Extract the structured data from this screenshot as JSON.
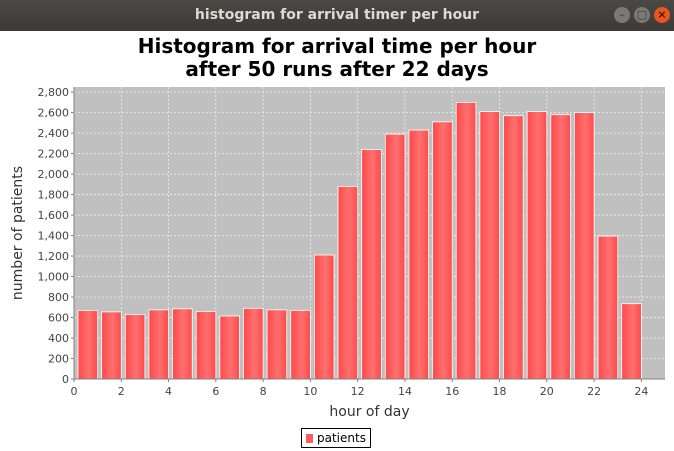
{
  "window": {
    "title": "histogram for arrival timer per hour",
    "buttons": {
      "minimize": "–",
      "maximize": "□",
      "close": "×"
    }
  },
  "chart_data": {
    "type": "bar",
    "title": [
      "Histogram for arrival time per hour",
      "after 50 runs after 22 days"
    ],
    "xlabel": "hour of day",
    "ylabel": "number of patients",
    "xlim": [
      0,
      25
    ],
    "ylim": [
      0,
      2850
    ],
    "xticks": [
      0,
      2,
      4,
      6,
      8,
      10,
      12,
      14,
      16,
      18,
      20,
      22,
      24
    ],
    "yticks": [
      0,
      200,
      400,
      600,
      800,
      1000,
      1200,
      1400,
      1600,
      1800,
      2000,
      2200,
      2400,
      2600,
      2800
    ],
    "ytick_labels": [
      "0",
      "200",
      "400",
      "600",
      "800",
      "1,000",
      "1,200",
      "1,400",
      "1,600",
      "1,800",
      "2,000",
      "2,200",
      "2,400",
      "2,600",
      "2,800"
    ],
    "grid": true,
    "legend_position": "bottom",
    "series": [
      {
        "name": "patients",
        "color": "#ff5c5c",
        "x": [
          0,
          1,
          2,
          3,
          4,
          5,
          6,
          7,
          8,
          9,
          10,
          11,
          12,
          13,
          14,
          15,
          16,
          17,
          18,
          19,
          20,
          21,
          22,
          23
        ],
        "values": [
          670,
          655,
          630,
          675,
          685,
          660,
          615,
          690,
          675,
          670,
          1210,
          1880,
          2240,
          2390,
          2430,
          2510,
          2700,
          2610,
          2570,
          2610,
          2580,
          2600,
          1395,
          735
        ]
      }
    ],
    "colors": {
      "plot_background": "#c0c0c0",
      "gridline": "#ffffff",
      "bar": "#ff5c5c"
    }
  }
}
